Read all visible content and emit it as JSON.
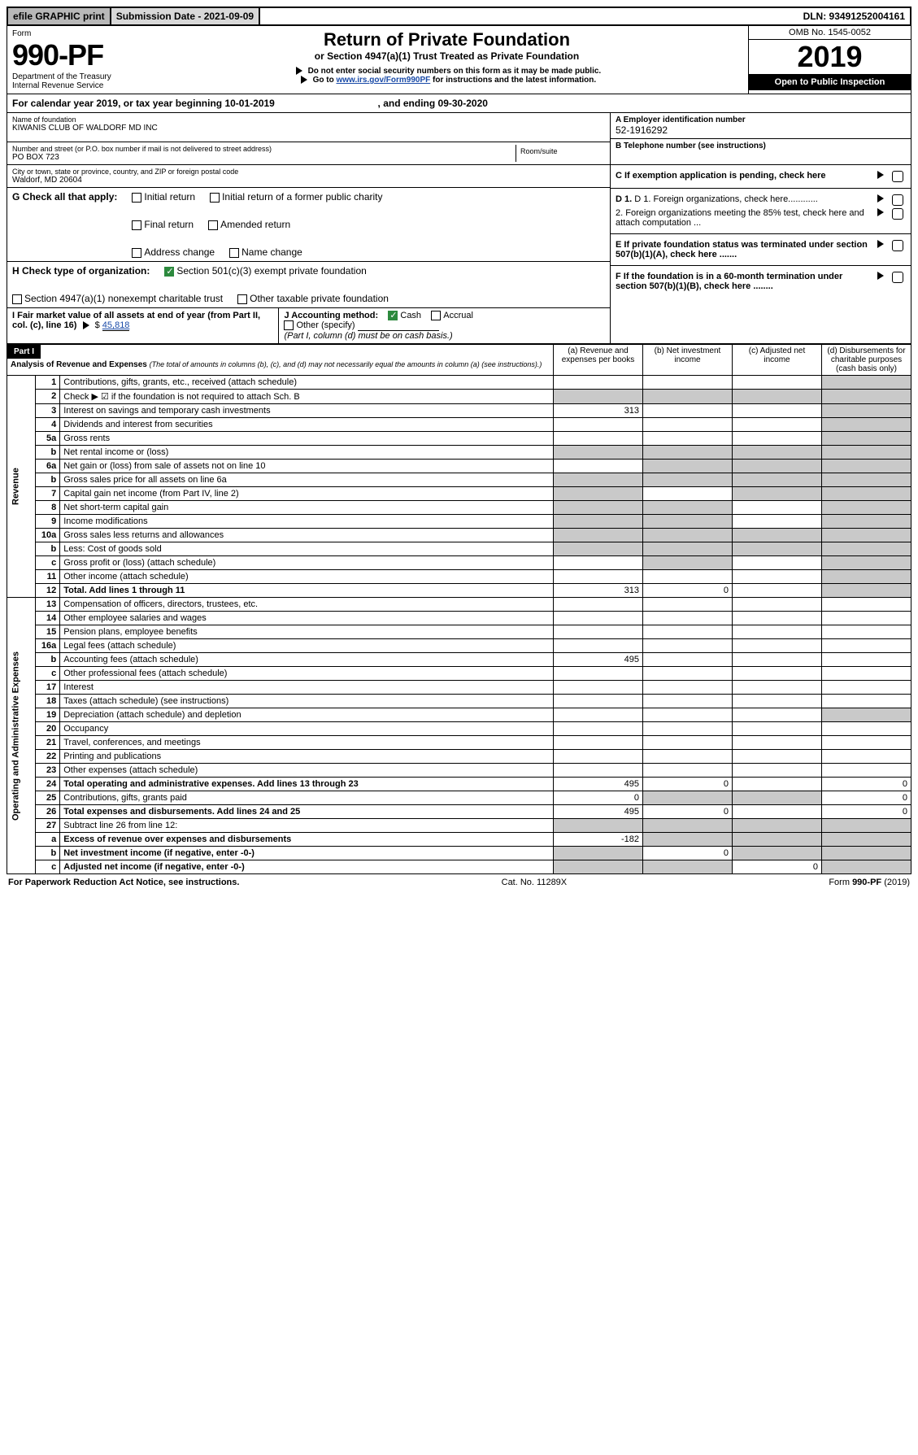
{
  "topbar": {
    "efile": "efile GRAPHIC print",
    "submission_label": "Submission Date - 2021-09-09",
    "dln": "DLN: 93491252004161"
  },
  "header": {
    "form_word": "Form",
    "form_number": "990-PF",
    "dept1": "Department of the Treasury",
    "dept2": "Internal Revenue Service",
    "title": "Return of Private Foundation",
    "subtitle": "or Section 4947(a)(1) Trust Treated as Private Foundation",
    "instr1": "Do not enter social security numbers on this form as it may be made public.",
    "instr2_prefix": "Go to ",
    "instr2_link": "www.irs.gov/Form990PF",
    "instr2_suffix": " for instructions and the latest information.",
    "omb": "OMB No. 1545-0052",
    "year": "2019",
    "open": "Open to Public Inspection"
  },
  "calendar": {
    "prefix": "For calendar year 2019, or tax year beginning ",
    "begin": "10-01-2019",
    "mid": " , and ending ",
    "end": "09-30-2020"
  },
  "entity": {
    "name_label": "Name of foundation",
    "name": "KIWANIS CLUB OF WALDORF MD INC",
    "addr_label": "Number and street (or P.O. box number if mail is not delivered to street address)",
    "room_label": "Room/suite",
    "addr": "PO BOX 723",
    "city_label": "City or town, state or province, country, and ZIP or foreign postal code",
    "city": "Waldorf, MD  20604",
    "ein_label": "A Employer identification number",
    "ein": "52-1916292",
    "phone_label": "B Telephone number (see instructions)",
    "c_label": "C If exemption application is pending, check here",
    "d1": "D 1. Foreign organizations, check here............",
    "d2": "2. Foreign organizations meeting the 85% test, check here and attach computation ...",
    "e_label": "E  If private foundation status was terminated under section 507(b)(1)(A), check here .......",
    "f_label": "F  If the foundation is in a 60-month termination under section 507(b)(1)(B), check here ........"
  },
  "checks": {
    "g_label": "G Check all that apply:",
    "initial": "Initial return",
    "initial_former": "Initial return of a former public charity",
    "final": "Final return",
    "amended": "Amended return",
    "addr_change": "Address change",
    "name_change": "Name change",
    "h_label": "H Check type of organization:",
    "h1": "Section 501(c)(3) exempt private foundation",
    "h2": "Section 4947(a)(1) nonexempt charitable trust",
    "h3": "Other taxable private foundation",
    "i_label": "I Fair market value of all assets at end of year (from Part II, col. (c), line 16) ",
    "i_amount_prefix": "$ ",
    "i_amount": "45,818",
    "j_label": "J Accounting method:",
    "j_cash": "Cash",
    "j_accrual": "Accrual",
    "j_other": "Other (specify)",
    "j_note": "(Part I, column (d) must be on cash basis.)"
  },
  "part1": {
    "badge": "Part I",
    "title": "Analysis of Revenue and Expenses ",
    "title_note": "(The total of amounts in columns (b), (c), and (d) may not necessarily equal the amounts in column (a) (see instructions).)",
    "col_a": "(a)   Revenue and expenses per books",
    "col_b": "(b)  Net investment income",
    "col_c": "(c)  Adjusted net income",
    "col_d": "(d)  Disbursements for charitable purposes (cash basis only)",
    "side_rev": "Revenue",
    "side_exp": "Operating and Administrative Expenses"
  },
  "rows": [
    {
      "n": "1",
      "label": "Contributions, gifts, grants, etc., received (attach schedule)",
      "a": "",
      "b": "",
      "c": "",
      "d": "shade"
    },
    {
      "n": "2",
      "label": "Check ▶ ☑ if the foundation is not required to attach Sch. B",
      "a": "shade",
      "b": "shade",
      "c": "shade",
      "d": "shade"
    },
    {
      "n": "3",
      "label": "Interest on savings and temporary cash investments",
      "a": "313",
      "b": "",
      "c": "",
      "d": "shade"
    },
    {
      "n": "4",
      "label": "Dividends and interest from securities",
      "a": "",
      "b": "",
      "c": "",
      "d": "shade"
    },
    {
      "n": "5a",
      "label": "Gross rents",
      "a": "",
      "b": "",
      "c": "",
      "d": "shade"
    },
    {
      "n": "b",
      "label": "Net rental income or (loss)",
      "a": "shade",
      "b": "shade",
      "c": "shade",
      "d": "shade"
    },
    {
      "n": "6a",
      "label": "Net gain or (loss) from sale of assets not on line 10",
      "a": "",
      "b": "shade",
      "c": "shade",
      "d": "shade"
    },
    {
      "n": "b",
      "label": "Gross sales price for all assets on line 6a",
      "a": "shade",
      "b": "shade",
      "c": "shade",
      "d": "shade"
    },
    {
      "n": "7",
      "label": "Capital gain net income (from Part IV, line 2)",
      "a": "shade",
      "b": "",
      "c": "shade",
      "d": "shade"
    },
    {
      "n": "8",
      "label": "Net short-term capital gain",
      "a": "shade",
      "b": "shade",
      "c": "",
      "d": "shade"
    },
    {
      "n": "9",
      "label": "Income modifications",
      "a": "shade",
      "b": "shade",
      "c": "",
      "d": "shade"
    },
    {
      "n": "10a",
      "label": "Gross sales less returns and allowances",
      "a": "shade",
      "b": "shade",
      "c": "shade",
      "d": "shade"
    },
    {
      "n": "b",
      "label": "Less: Cost of goods sold",
      "a": "shade",
      "b": "shade",
      "c": "shade",
      "d": "shade"
    },
    {
      "n": "c",
      "label": "Gross profit or (loss) (attach schedule)",
      "a": "",
      "b": "shade",
      "c": "",
      "d": "shade"
    },
    {
      "n": "11",
      "label": "Other income (attach schedule)",
      "a": "",
      "b": "",
      "c": "",
      "d": "shade"
    },
    {
      "n": "12",
      "label": "Total. Add lines 1 through 11",
      "bold": true,
      "a": "313",
      "b": "0",
      "c": "",
      "d": "shade"
    },
    {
      "n": "13",
      "label": "Compensation of officers, directors, trustees, etc.",
      "a": "",
      "b": "",
      "c": "",
      "d": ""
    },
    {
      "n": "14",
      "label": "Other employee salaries and wages",
      "a": "",
      "b": "",
      "c": "",
      "d": ""
    },
    {
      "n": "15",
      "label": "Pension plans, employee benefits",
      "a": "",
      "b": "",
      "c": "",
      "d": ""
    },
    {
      "n": "16a",
      "label": "Legal fees (attach schedule)",
      "a": "",
      "b": "",
      "c": "",
      "d": ""
    },
    {
      "n": "b",
      "label": "Accounting fees (attach schedule)",
      "a": "495",
      "b": "",
      "c": "",
      "d": ""
    },
    {
      "n": "c",
      "label": "Other professional fees (attach schedule)",
      "a": "",
      "b": "",
      "c": "",
      "d": ""
    },
    {
      "n": "17",
      "label": "Interest",
      "a": "",
      "b": "",
      "c": "",
      "d": ""
    },
    {
      "n": "18",
      "label": "Taxes (attach schedule) (see instructions)",
      "a": "",
      "b": "",
      "c": "",
      "d": ""
    },
    {
      "n": "19",
      "label": "Depreciation (attach schedule) and depletion",
      "a": "",
      "b": "",
      "c": "",
      "d": "shade"
    },
    {
      "n": "20",
      "label": "Occupancy",
      "a": "",
      "b": "",
      "c": "",
      "d": ""
    },
    {
      "n": "21",
      "label": "Travel, conferences, and meetings",
      "a": "",
      "b": "",
      "c": "",
      "d": ""
    },
    {
      "n": "22",
      "label": "Printing and publications",
      "a": "",
      "b": "",
      "c": "",
      "d": ""
    },
    {
      "n": "23",
      "label": "Other expenses (attach schedule)",
      "a": "",
      "b": "",
      "c": "",
      "d": ""
    },
    {
      "n": "24",
      "label": "Total operating and administrative expenses. Add lines 13 through 23",
      "bold": true,
      "a": "495",
      "b": "0",
      "c": "",
      "d": "0"
    },
    {
      "n": "25",
      "label": "Contributions, gifts, grants paid",
      "a": "0",
      "b": "shade",
      "c": "shade",
      "d": "0"
    },
    {
      "n": "26",
      "label": "Total expenses and disbursements. Add lines 24 and 25",
      "bold": true,
      "a": "495",
      "b": "0",
      "c": "",
      "d": "0"
    },
    {
      "n": "27",
      "label": "Subtract line 26 from line 12:",
      "a": "shade",
      "b": "shade",
      "c": "shade",
      "d": "shade"
    },
    {
      "n": "a",
      "label": "Excess of revenue over expenses and disbursements",
      "bold": true,
      "a": "-182",
      "b": "shade",
      "c": "shade",
      "d": "shade"
    },
    {
      "n": "b",
      "label": "Net investment income (if negative, enter -0-)",
      "bold": true,
      "a": "shade",
      "b": "0",
      "c": "shade",
      "d": "shade"
    },
    {
      "n": "c",
      "label": "Adjusted net income (if negative, enter -0-)",
      "bold": true,
      "a": "shade",
      "b": "shade",
      "c": "0",
      "d": "shade"
    }
  ],
  "footer": {
    "left": "For Paperwork Reduction Act Notice, see instructions.",
    "mid": "Cat. No. 11289X",
    "right": "Form 990-PF (2019)"
  }
}
